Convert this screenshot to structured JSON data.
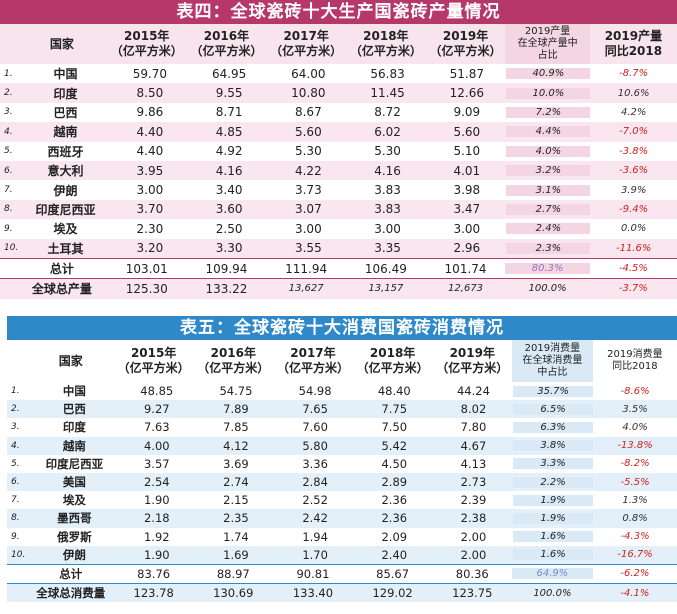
{
  "table4": {
    "title": "表四：全球瓷砖十大生产国瓷砖产量情况",
    "headers": [
      "国家",
      "2015年\n（亿平方米）",
      "2016年\n（亿平方米）",
      "2017年\n（亿平方米）",
      "2018年\n（亿平方米）",
      "2019年\n（亿平方米）",
      "2019产量\n在全球产量中\n占比",
      "2019产量\n同比2018"
    ],
    "rows": [
      {
        "idx": "1.",
        "name": "中国",
        "v": [
          "59.70",
          "64.95",
          "64.00",
          "56.83",
          "51.87"
        ],
        "share": "40.9%",
        "chg": "-8.7%",
        "neg": true
      },
      {
        "idx": "2.",
        "name": "印度",
        "v": [
          "8.50",
          "9.55",
          "10.80",
          "11.45",
          "12.66"
        ],
        "share": "10.0%",
        "chg": "10.6%",
        "neg": false
      },
      {
        "idx": "3.",
        "name": "巴西",
        "v": [
          "9.86",
          "8.71",
          "8.67",
          "8.72",
          "9.09"
        ],
        "share": "7.2%",
        "chg": "4.2%",
        "neg": false
      },
      {
        "idx": "4.",
        "name": "越南",
        "v": [
          "4.40",
          "4.85",
          "5.60",
          "6.02",
          "5.60"
        ],
        "share": "4.4%",
        "chg": "-7.0%",
        "neg": true
      },
      {
        "idx": "5.",
        "name": "西班牙",
        "v": [
          "4.40",
          "4.92",
          "5.30",
          "5.30",
          "5.10"
        ],
        "share": "4.0%",
        "chg": "-3.8%",
        "neg": true
      },
      {
        "idx": "6.",
        "name": "意大利",
        "v": [
          "3.95",
          "4.16",
          "4.22",
          "4.16",
          "4.01"
        ],
        "share": "3.2%",
        "chg": "-3.6%",
        "neg": true
      },
      {
        "idx": "7.",
        "name": "伊朗",
        "v": [
          "3.00",
          "3.40",
          "3.73",
          "3.83",
          "3.98"
        ],
        "share": "3.1%",
        "chg": "3.9%",
        "neg": false
      },
      {
        "idx": "8.",
        "name": "印度尼西亚",
        "v": [
          "3.70",
          "3.60",
          "3.07",
          "3.83",
          "3.47"
        ],
        "share": "2.7%",
        "chg": "-9.4%",
        "neg": true
      },
      {
        "idx": "9.",
        "name": "埃及",
        "v": [
          "2.30",
          "2.50",
          "3.00",
          "3.00",
          "3.00"
        ],
        "share": "2.4%",
        "chg": "0.0%",
        "neg": false
      },
      {
        "idx": "10.",
        "name": "土耳其",
        "v": [
          "3.20",
          "3.30",
          "3.55",
          "3.35",
          "2.96"
        ],
        "share": "2.3%",
        "chg": "-11.6%",
        "neg": true
      }
    ],
    "total": {
      "name": "总计",
      "v": [
        "103.01",
        "109.94",
        "111.94",
        "106.49",
        "101.74"
      ],
      "share": "80.3%",
      "chg": "-4.5%"
    },
    "grand": {
      "name": "全球总产量",
      "v": [
        "125.30",
        "133.22",
        "13,627",
        "13,157",
        "12,673"
      ],
      "share": "100.0%",
      "chg": "-3.7%"
    }
  },
  "table5": {
    "title": "表五：全球瓷砖十大消费国瓷砖消费情况",
    "headers": [
      "国家",
      "2015年\n（亿平方米）",
      "2016年\n（亿平方米）",
      "2017年\n（亿平方米）",
      "2018年\n（亿平方米）",
      "2019年\n（亿平方米）",
      "2019消费量\n在全球消费量\n中占比",
      "2019消费量\n同比2018"
    ],
    "rows": [
      {
        "idx": "1.",
        "name": "中国",
        "v": [
          "48.85",
          "54.75",
          "54.98",
          "48.40",
          "44.24"
        ],
        "share": "35.7%",
        "chg": "-8.6%",
        "neg": true
      },
      {
        "idx": "2.",
        "name": "巴西",
        "v": [
          "9.27",
          "7.89",
          "7.65",
          "7.75",
          "8.02"
        ],
        "share": "6.5%",
        "chg": "3.5%",
        "neg": false
      },
      {
        "idx": "3.",
        "name": "印度",
        "v": [
          "7.63",
          "7.85",
          "7.60",
          "7.50",
          "7.80"
        ],
        "share": "6.3%",
        "chg": "4.0%",
        "neg": false
      },
      {
        "idx": "4.",
        "name": "越南",
        "v": [
          "4.00",
          "4.12",
          "5.80",
          "5.42",
          "4.67"
        ],
        "share": "3.8%",
        "chg": "-13.8%",
        "neg": true
      },
      {
        "idx": "5.",
        "name": "印度尼西亚",
        "v": [
          "3.57",
          "3.69",
          "3.36",
          "4.50",
          "4.13"
        ],
        "share": "3.3%",
        "chg": "-8.2%",
        "neg": true
      },
      {
        "idx": "6.",
        "name": "美国",
        "v": [
          "2.54",
          "2.74",
          "2.84",
          "2.89",
          "2.73"
        ],
        "share": "2.2%",
        "chg": "-5.5%",
        "neg": true
      },
      {
        "idx": "7.",
        "name": "埃及",
        "v": [
          "1.90",
          "2.15",
          "2.52",
          "2.36",
          "2.39"
        ],
        "share": "1.9%",
        "chg": "1.3%",
        "neg": false
      },
      {
        "idx": "8.",
        "name": "墨西哥",
        "v": [
          "2.18",
          "2.35",
          "2.42",
          "2.36",
          "2.38"
        ],
        "share": "1.9%",
        "chg": "0.8%",
        "neg": false
      },
      {
        "idx": "9.",
        "name": "俄罗斯",
        "v": [
          "1.92",
          "1.74",
          "1.94",
          "2.09",
          "2.00"
        ],
        "share": "1.6%",
        "chg": "-4.3%",
        "neg": true
      },
      {
        "idx": "10.",
        "name": "伊朗",
        "v": [
          "1.90",
          "1.69",
          "1.70",
          "2.40",
          "2.00"
        ],
        "share": "1.6%",
        "chg": "-16.7%",
        "neg": true
      }
    ],
    "total": {
      "name": "总计",
      "v": [
        "83.76",
        "88.97",
        "90.81",
        "85.67",
        "80.36"
      ],
      "share": "64.9%",
      "chg": "-6.2%"
    },
    "grand": {
      "name": "全球总消费量",
      "v": [
        "123.78",
        "130.69",
        "133.40",
        "129.02",
        "123.75"
      ],
      "share": "100.0%",
      "chg": "-4.1%"
    }
  }
}
